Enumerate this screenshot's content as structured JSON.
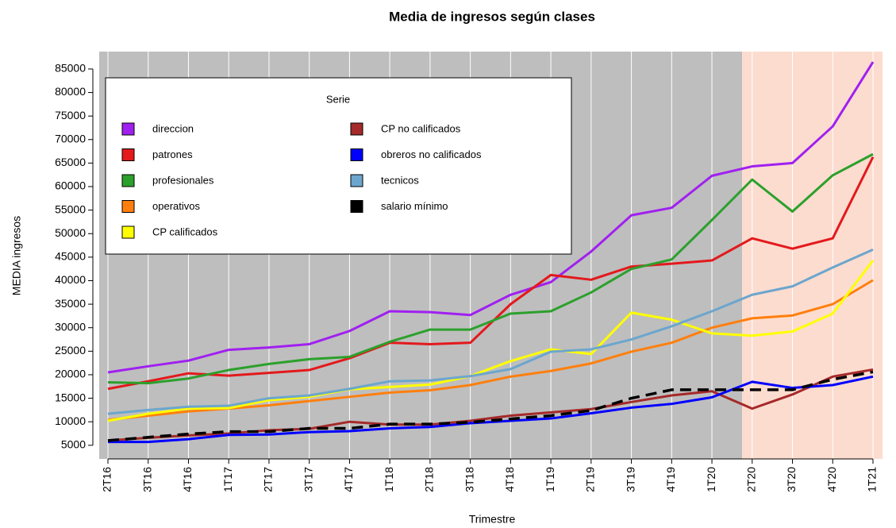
{
  "chart_data": {
    "type": "line",
    "title": "Media de ingresos según clases",
    "xlabel": "Trimestre",
    "ylabel": "MEDIA ingresos",
    "legend_title": "Serie",
    "legend_position": "top-left",
    "categories": [
      "2T16",
      "3T16",
      "4T16",
      "1T17",
      "2T17",
      "3T17",
      "4T17",
      "1T18",
      "2T18",
      "3T18",
      "4T18",
      "1T19",
      "2T19",
      "3T19",
      "4T19",
      "1T20",
      "2T20",
      "3T20",
      "4T20",
      "1T21"
    ],
    "ylim": [
      2100,
      88700
    ],
    "yticks": [
      5000,
      10000,
      15000,
      20000,
      25000,
      30000,
      35000,
      40000,
      45000,
      50000,
      55000,
      60000,
      65000,
      70000,
      75000,
      80000,
      85000
    ],
    "series": [
      {
        "name": "direccion",
        "color": "#a020f0",
        "values": [
          20500,
          21800,
          23000,
          25300,
          25800,
          26500,
          29300,
          33500,
          33300,
          32700,
          37000,
          39700,
          46200,
          53900,
          55500,
          62300,
          64300,
          65000,
          72800,
          86500
        ]
      },
      {
        "name": "patrones",
        "color": "#e3191c",
        "values": [
          17000,
          18600,
          20300,
          19800,
          20400,
          21000,
          23500,
          26800,
          26500,
          26800,
          35000,
          41200,
          40200,
          43000,
          43600,
          44300,
          49000,
          46800,
          49000,
          66300
        ]
      },
      {
        "name": "profesionales",
        "color": "#2ca02c",
        "values": [
          18400,
          18200,
          19200,
          21000,
          22300,
          23300,
          23800,
          27000,
          29600,
          29600,
          33000,
          33500,
          37500,
          42500,
          44500,
          52900,
          61500,
          54700,
          62400,
          66900
        ]
      },
      {
        "name": "operativos",
        "color": "#ff7f0e",
        "values": [
          10400,
          11300,
          12200,
          12800,
          13500,
          14400,
          15300,
          16200,
          16700,
          17800,
          19600,
          20800,
          22400,
          24900,
          26800,
          30000,
          32000,
          32600,
          35000,
          40100
        ]
      },
      {
        "name": "CP calificados",
        "color": "#ffff00",
        "values": [
          10200,
          11700,
          12800,
          12900,
          14600,
          15300,
          16900,
          17400,
          17900,
          19700,
          22900,
          25400,
          24400,
          33200,
          31700,
          28800,
          28300,
          29200,
          33000,
          44300
        ]
      },
      {
        "name": "CP no calificados",
        "color": "#a52a2a",
        "values": [
          6000,
          6600,
          7100,
          7500,
          8200,
          8500,
          10000,
          9400,
          9400,
          10200,
          11300,
          12000,
          12700,
          14200,
          15600,
          16500,
          12800,
          15800,
          19600,
          21100
        ]
      },
      {
        "name": "obreros no calificados",
        "color": "#0000ff",
        "values": [
          5700,
          5700,
          6300,
          7200,
          7300,
          7800,
          8000,
          8600,
          8900,
          9700,
          10200,
          10700,
          11800,
          13000,
          13800,
          15200,
          18500,
          17200,
          17800,
          19600
        ]
      },
      {
        "name": "tecnicos",
        "color": "#6ca6cd",
        "values": [
          11700,
          12500,
          13200,
          13400,
          15000,
          15600,
          17000,
          18600,
          18800,
          19700,
          21200,
          24900,
          25400,
          27500,
          30300,
          33500,
          37000,
          38800,
          42800,
          46600
        ]
      },
      {
        "name": "salario mínimo",
        "color": "#000000",
        "dashed": true,
        "values": [
          6000,
          6700,
          7400,
          7900,
          7900,
          8600,
          8600,
          9500,
          9500,
          9900,
          10600,
          11300,
          12400,
          15000,
          16800,
          16800,
          16800,
          16800,
          19000,
          20600
        ]
      }
    ]
  }
}
